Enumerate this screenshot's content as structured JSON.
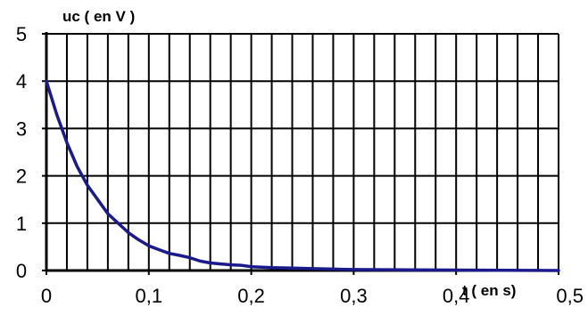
{
  "chart_data": {
    "type": "line",
    "xlabel": "t ( en s)",
    "ylabel": "uc ( en V )",
    "xlim": [
      0,
      0.5
    ],
    "ylim": [
      0,
      5
    ],
    "x_ticks": [
      "0",
      "0,1",
      "0,2",
      "0,3",
      "0,4",
      "0,5"
    ],
    "y_ticks": [
      "0",
      "1",
      "2",
      "3",
      "4",
      "5"
    ],
    "grid": {
      "vertical_step": 0.02,
      "horizontal_step": 1
    },
    "series_color": "#1a1a8c",
    "series": [
      {
        "x": [
          0,
          0.01,
          0.02,
          0.03,
          0.04,
          0.05,
          0.06,
          0.07,
          0.08,
          0.09,
          0.1,
          0.11,
          0.12,
          0.13,
          0.14,
          0.15,
          0.16,
          0.17,
          0.18,
          0.19,
          0.2,
          0.22,
          0.24,
          0.26,
          0.28,
          0.3,
          0.35,
          0.4,
          0.45,
          0.5
        ],
        "y": [
          4.0,
          3.3,
          2.7,
          2.2,
          1.8,
          1.5,
          1.2,
          1.0,
          0.8,
          0.65,
          0.52,
          0.44,
          0.36,
          0.32,
          0.27,
          0.2,
          0.16,
          0.14,
          0.12,
          0.11,
          0.08,
          0.06,
          0.05,
          0.04,
          0.03,
          0.02,
          0.015,
          0.01,
          0.005,
          0.0
        ]
      }
    ]
  }
}
